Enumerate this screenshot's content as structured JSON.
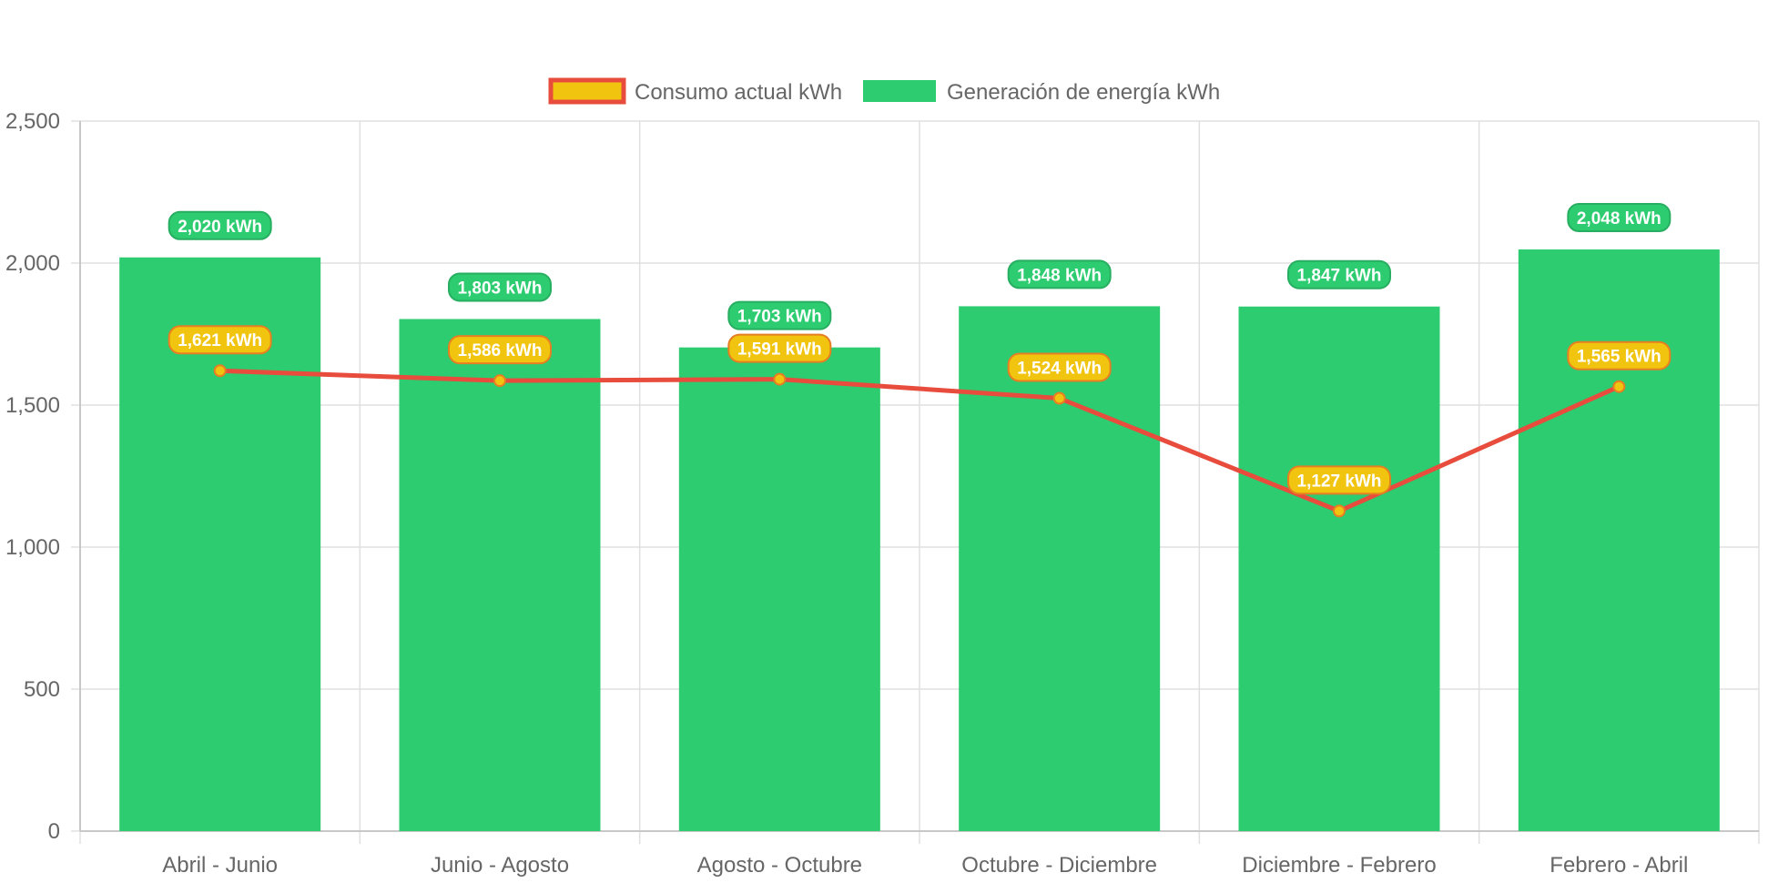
{
  "chart_data": {
    "type": "bar",
    "categories": [
      "Abril - Junio",
      "Junio - Agosto",
      "Agosto - Octubre",
      "Octubre - Diciembre",
      "Diciembre - Febrero",
      "Febrero - Abril"
    ],
    "series": [
      {
        "name": "Consumo actual kWh",
        "type": "line",
        "values": [
          1621,
          1586,
          1591,
          1524,
          1127,
          1565
        ],
        "labels": [
          "1,621 kWh",
          "1,586 kWh",
          "1,591 kWh",
          "1,524 kWh",
          "1,127 kWh",
          "1,565 kWh"
        ],
        "line_color": "#e74c3c",
        "point_color": "#f1c40f"
      },
      {
        "name": "Generación de energía kWh",
        "type": "bar",
        "values": [
          2020,
          1803,
          1703,
          1848,
          1847,
          2048
        ],
        "labels": [
          "2,020 kWh",
          "1,803 kWh",
          "1,703 kWh",
          "1,848 kWh",
          "1,847 kWh",
          "2,048 kWh"
        ],
        "color": "#2ecc71"
      }
    ],
    "ylim": [
      0,
      2500
    ],
    "y_ticks": [
      "0",
      "500",
      "1,000",
      "1,500",
      "2,000",
      "2,500"
    ],
    "legend_position": "top",
    "grid": true,
    "colors": {
      "grid": "#e0e0e0",
      "label_border_green": "#27ae60",
      "label_border_orange": "#e67e22"
    }
  }
}
